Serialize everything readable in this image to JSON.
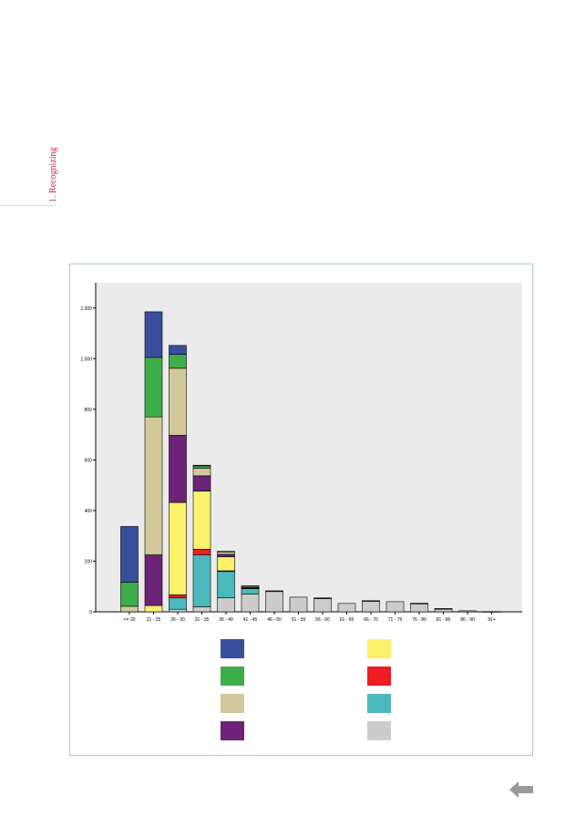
{
  "page": {
    "side_label": "1. Recognizing"
  },
  "chart_data": {
    "type": "bar",
    "stacked": true,
    "ylim": [
      0,
      1300
    ],
    "yticks": [
      0,
      200,
      400,
      600,
      800,
      1000,
      1200
    ],
    "ytick_labels": [
      "0",
      "200",
      "400",
      "600",
      "800",
      "1.000",
      "1.200"
    ],
    "categories": [
      "<= 20",
      "21 - 25",
      "26 - 30",
      "31 - 35",
      "36 - 40",
      "41 - 45",
      "46 - 50",
      "51 - 55",
      "56 - 60",
      "61 - 65",
      "66 - 70",
      "71 - 75",
      "76 - 80",
      "81 - 85",
      "86 - 90",
      "91+"
    ],
    "grid": false,
    "plot_background": "#ebebeb",
    "series": [
      {
        "color": "#cccccc",
        "values": [
          0,
          0,
          10,
          20,
          55,
          70,
          80,
          58,
          52,
          33,
          42,
          40,
          33,
          12,
          4,
          1
        ]
      },
      {
        "color": "#4bb8bd",
        "values": [
          0,
          0,
          45,
          205,
          105,
          22,
          0,
          0,
          0,
          0,
          0,
          0,
          0,
          0,
          0,
          0
        ]
      },
      {
        "color": "#ee1c24",
        "values": [
          0,
          0,
          12,
          22,
          2,
          0,
          0,
          0,
          0,
          0,
          0,
          0,
          0,
          0,
          0,
          0
        ]
      },
      {
        "color": "#fbf16b",
        "values": [
          0,
          25,
          365,
          230,
          55,
          2,
          0,
          0,
          0,
          0,
          0,
          0,
          0,
          0,
          0,
          0
        ]
      },
      {
        "color": "#6d2377",
        "values": [
          0,
          200,
          265,
          60,
          10,
          2,
          3,
          0,
          3,
          0,
          2,
          0,
          1,
          1,
          0,
          0
        ]
      },
      {
        "color": "#d1c999",
        "values": [
          22,
          545,
          265,
          30,
          10,
          5,
          0,
          0,
          0,
          0,
          0,
          0,
          0,
          0,
          0,
          0
        ]
      },
      {
        "color": "#3cad48",
        "values": [
          95,
          235,
          55,
          10,
          2,
          2,
          0,
          0,
          0,
          0,
          0,
          0,
          0,
          0,
          0,
          0
        ]
      },
      {
        "color": "#3a4e9f",
        "values": [
          220,
          180,
          35,
          2,
          0,
          0,
          0,
          0,
          0,
          0,
          0,
          0,
          0,
          0,
          0,
          0
        ]
      }
    ],
    "legend": {
      "placement": "bottom",
      "columns": [
        [
          "#3a4e9f",
          "#3cad48",
          "#d1c999",
          "#6d2377"
        ],
        [
          "#fbf16b",
          "#ee1c24",
          "#4bb8bd",
          "#cccccc"
        ]
      ]
    }
  },
  "icons": {
    "back": "left-arrow-icon",
    "back_color": "#999999"
  }
}
